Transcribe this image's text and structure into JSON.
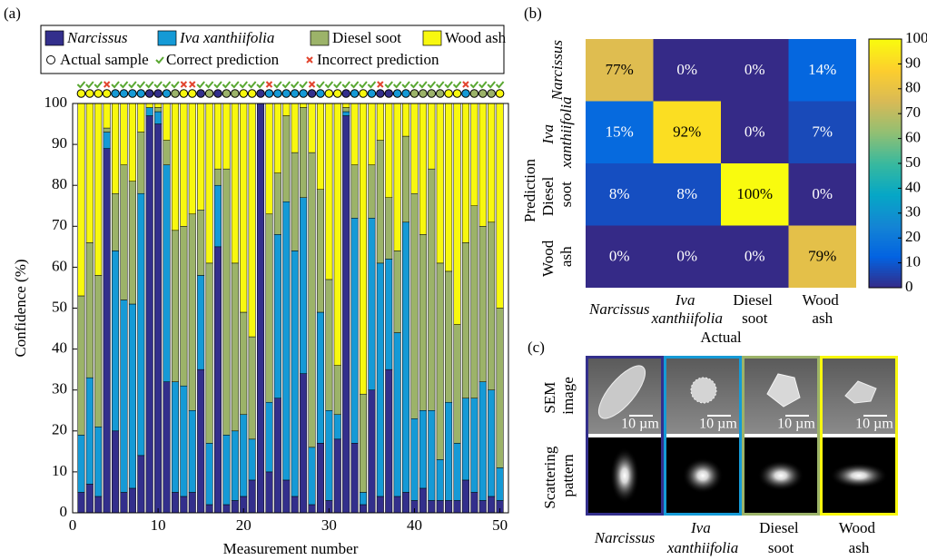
{
  "panel_labels": [
    "(a)",
    "(b)",
    "(c)"
  ],
  "chart_data": [
    {
      "type": "bar",
      "stacked": true,
      "x": [
        1,
        2,
        3,
        4,
        5,
        6,
        7,
        8,
        9,
        10,
        11,
        12,
        13,
        14,
        15,
        16,
        17,
        18,
        19,
        20,
        21,
        22,
        23,
        24,
        25,
        26,
        27,
        28,
        29,
        30,
        31,
        32,
        33,
        34,
        35,
        36,
        37,
        38,
        39,
        40,
        41,
        42,
        43,
        44,
        45,
        46,
        47,
        48,
        49,
        50
      ],
      "series": [
        {
          "name": "Narcissus",
          "color": "#332f8c",
          "values": [
            5,
            7,
            4,
            89,
            20,
            5,
            6,
            14,
            97,
            95,
            32,
            5,
            4,
            5,
            35,
            2,
            65,
            2,
            3,
            4,
            8,
            100,
            10,
            28,
            8,
            4,
            34,
            2,
            17,
            3,
            18,
            97,
            17,
            2,
            30,
            4,
            35,
            4,
            5,
            3,
            6,
            3,
            3,
            3,
            3,
            8,
            5,
            3,
            4,
            3
          ]
        },
        {
          "name": "Iva xanthiifolia",
          "color": "#159ad6",
          "values": [
            14,
            26,
            17,
            4,
            44,
            47,
            45,
            64,
            2,
            3,
            53,
            27,
            27,
            20,
            23,
            15,
            15,
            17,
            17,
            20,
            10,
            0,
            17,
            40,
            68,
            60,
            43,
            14,
            32,
            22,
            6,
            1,
            55,
            3,
            42,
            57,
            27,
            40,
            66,
            20,
            19,
            22,
            10,
            24,
            14,
            20,
            23,
            29,
            26,
            8
          ]
        },
        {
          "name": "Diesel soot",
          "color": "#9cb369",
          "values": [
            34,
            33,
            37,
            1,
            14,
            33,
            30,
            15,
            0,
            1,
            6,
            37,
            39,
            48,
            16,
            44,
            4,
            65,
            41,
            25,
            25,
            0,
            46,
            15,
            21,
            24,
            22,
            72,
            30,
            32,
            12,
            1,
            13,
            24,
            13,
            30,
            15,
            20,
            21,
            55,
            43,
            59,
            48,
            32,
            29,
            38,
            47,
            38,
            41,
            39
          ]
        },
        {
          "name": "Wood ash",
          "color": "#f8f80f",
          "values": [
            47,
            34,
            42,
            6,
            22,
            15,
            19,
            7,
            1,
            1,
            9,
            31,
            30,
            27,
            26,
            39,
            16,
            16,
            39,
            51,
            57,
            0,
            27,
            17,
            3,
            12,
            1,
            12,
            21,
            43,
            64,
            1,
            15,
            71,
            15,
            9,
            23,
            36,
            8,
            22,
            32,
            16,
            39,
            41,
            54,
            34,
            25,
            30,
            29,
            50
          ]
        }
      ],
      "markers": {
        "actual": [
          3,
          3,
          3,
          3,
          1,
          1,
          1,
          1,
          0,
          0,
          1,
          2,
          3,
          3,
          0,
          2,
          0,
          2,
          2,
          3,
          3,
          0,
          1,
          1,
          1,
          1,
          1,
          0,
          1,
          3,
          3,
          0,
          1,
          3,
          1,
          0,
          0,
          1,
          1,
          2,
          2,
          2,
          2,
          3,
          3,
          1,
          2,
          2,
          2,
          3
        ],
        "correct": [
          true,
          true,
          true,
          false,
          true,
          true,
          true,
          true,
          true,
          true,
          true,
          true,
          false,
          false,
          true,
          true,
          true,
          true,
          true,
          true,
          true,
          true,
          false,
          true,
          true,
          true,
          true,
          false,
          true,
          true,
          true,
          true,
          true,
          true,
          true,
          false,
          true,
          true,
          true,
          true,
          true,
          true,
          true,
          true,
          true,
          false,
          true,
          true,
          true,
          true
        ],
        "actual_label": "Actual sample",
        "correct_label": "Correct prediction",
        "incorrect_label": "Incorrect prediction",
        "correct_color": "#5aa832",
        "incorrect_color": "#e2452e"
      },
      "xlim": [
        0,
        51
      ],
      "xticks": [
        0,
        10,
        20,
        30,
        40,
        50
      ],
      "ylim": [
        0,
        100
      ],
      "yticks": [
        0,
        10,
        20,
        30,
        40,
        50,
        60,
        70,
        80,
        90,
        100
      ],
      "xlabel": "Measurement number",
      "ylabel": "Confidence (%)"
    },
    {
      "type": "heatmap",
      "rows": [
        "Narcissus",
        "Iva xanthiifolia",
        "Diesel soot",
        "Wood ash"
      ],
      "columns": [
        "Narcissus",
        "Iva xanthiifolia",
        "Diesel soot",
        "Wood ash"
      ],
      "values": [
        [
          77,
          0,
          0,
          14
        ],
        [
          15,
          92,
          0,
          7
        ],
        [
          8,
          8,
          100,
          0
        ],
        [
          0,
          0,
          0,
          79
        ]
      ],
      "value_labels": [
        [
          "77%",
          "0%",
          "0%",
          "14%"
        ],
        [
          "15%",
          "92%",
          "0%",
          "7%"
        ],
        [
          "8%",
          "8%",
          "100%",
          "0%"
        ],
        [
          "0%",
          "0%",
          "0%",
          "79%"
        ]
      ],
      "xlabel": "Actual",
      "ylabel": "Prediction",
      "clim": [
        0,
        100
      ],
      "cticks": [
        0,
        10,
        20,
        30,
        40,
        50,
        60,
        70,
        80,
        90,
        100
      ],
      "colormap": [
        "#352a87",
        "#0363e1",
        "#1485d4",
        "#06a7c6",
        "#38b99e",
        "#92bf73",
        "#d9ba56",
        "#fcce2e",
        "#f9fb0e"
      ]
    }
  ],
  "panel_c": {
    "rows": [
      "SEM image",
      "Scattering pattern"
    ],
    "columns": [
      "Narcissus",
      "Iva xanthiifolia",
      "Diesel soot",
      "Wood ash"
    ],
    "scale_bar": "10 µm"
  }
}
